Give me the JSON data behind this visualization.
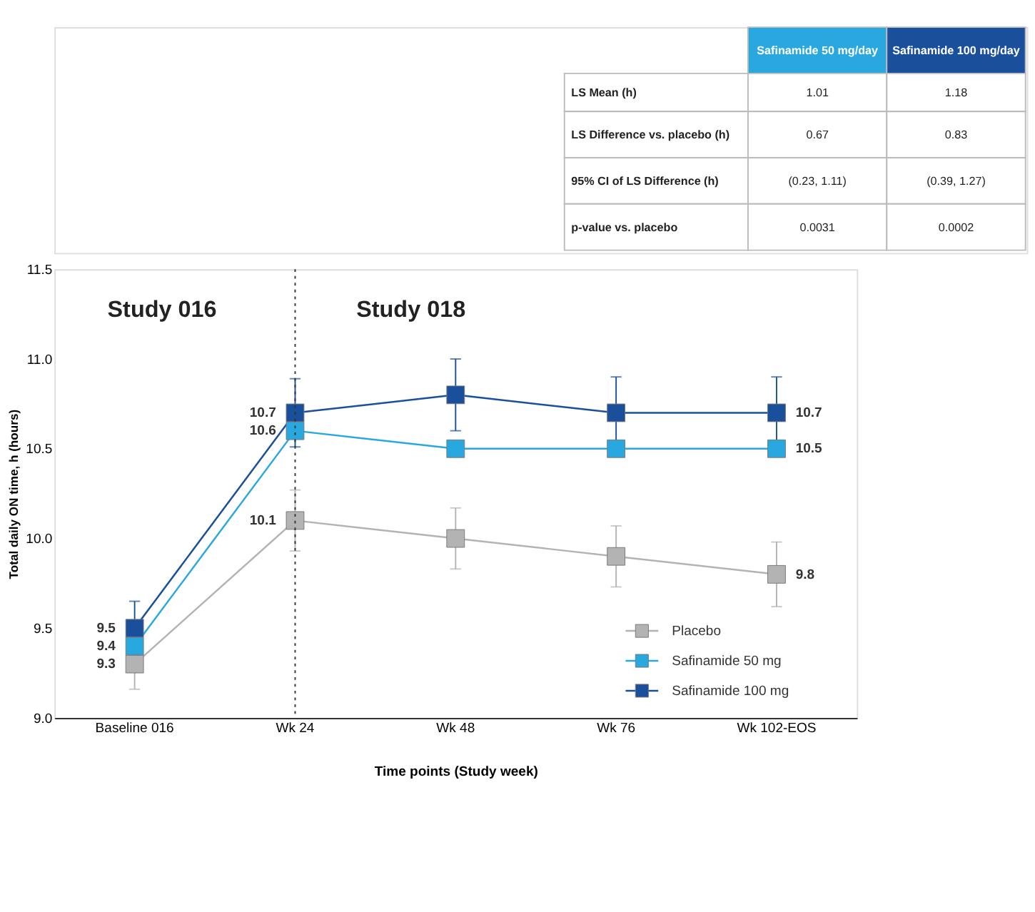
{
  "chart_data": [
    {
      "type": "other",
      "colors": [
        "#29a8e0",
        "#1a4f9c"
      ],
      "annotations": [
        "Safinamide 50 mg/day",
        "Safinamide 100 mg/day",
        "LS Mean (h)",
        "1.01",
        "1.18",
        "LS Difference vs. placebo (h)",
        "0.67",
        "0.83",
        "95% CI of LS Difference (h)",
        "(0.23, 1.11)",
        "(0.39, 1.27)",
        "p-value vs. placebo",
        "0.0031",
        "0.0002"
      ]
    },
    {
      "type": "line",
      "xlabel": "Time points (Study week)",
      "ylabel": "Total daily ON time, h (hours)",
      "categories": [
        "Baseline 016",
        "Wk 24",
        "Wk 48",
        "Wk 76",
        "Wk 102-EOS"
      ],
      "series": [
        {
          "name": "Placebo",
          "color": "#b3b3b3",
          "values": [
            9.3,
            10.1,
            10.0,
            9.9,
            9.8
          ],
          "errors": [
            0.14,
            0.17,
            0.17,
            0.17,
            0.18
          ],
          "value_labels": [
            "9.3",
            "10.1",
            null,
            null,
            "9.8"
          ]
        },
        {
          "name": "Safinamide 50 mg",
          "color": "#29a8e0",
          "values": [
            9.4,
            10.6,
            10.5,
            10.5,
            10.5
          ],
          "value_labels": [
            "9.4",
            "10.6",
            null,
            null,
            "10.5"
          ]
        },
        {
          "name": "Safinamide 100 mg",
          "color": "#1a4f9c",
          "values": [
            9.5,
            10.7,
            10.8,
            10.7,
            10.7
          ],
          "errors": [
            0.15,
            0.19,
            0.2,
            0.2,
            0.2
          ],
          "value_labels": [
            "9.5",
            "10.7",
            null,
            null,
            "10.7"
          ]
        }
      ],
      "ylim": [
        9.0,
        11.5
      ],
      "yticks": [
        {
          "value": 9.0,
          "label": "9.0"
        },
        {
          "value": 9.5,
          "label": "9.5"
        },
        {
          "value": 10.0,
          "label": "10.0"
        },
        {
          "value": 10.5,
          "label": "10.5"
        },
        {
          "value": 11.0,
          "label": "11.0"
        },
        {
          "value": 11.5,
          "label": "11.5"
        }
      ],
      "ref_lines": [
        {
          "axis": "x",
          "value": "Wk 24",
          "line_style": "dotted",
          "color": "#333333"
        }
      ],
      "annotations": [
        "Study 016",
        "Study 018"
      ],
      "marker": "square",
      "legend": "bottom right",
      "grid": false
    }
  ]
}
